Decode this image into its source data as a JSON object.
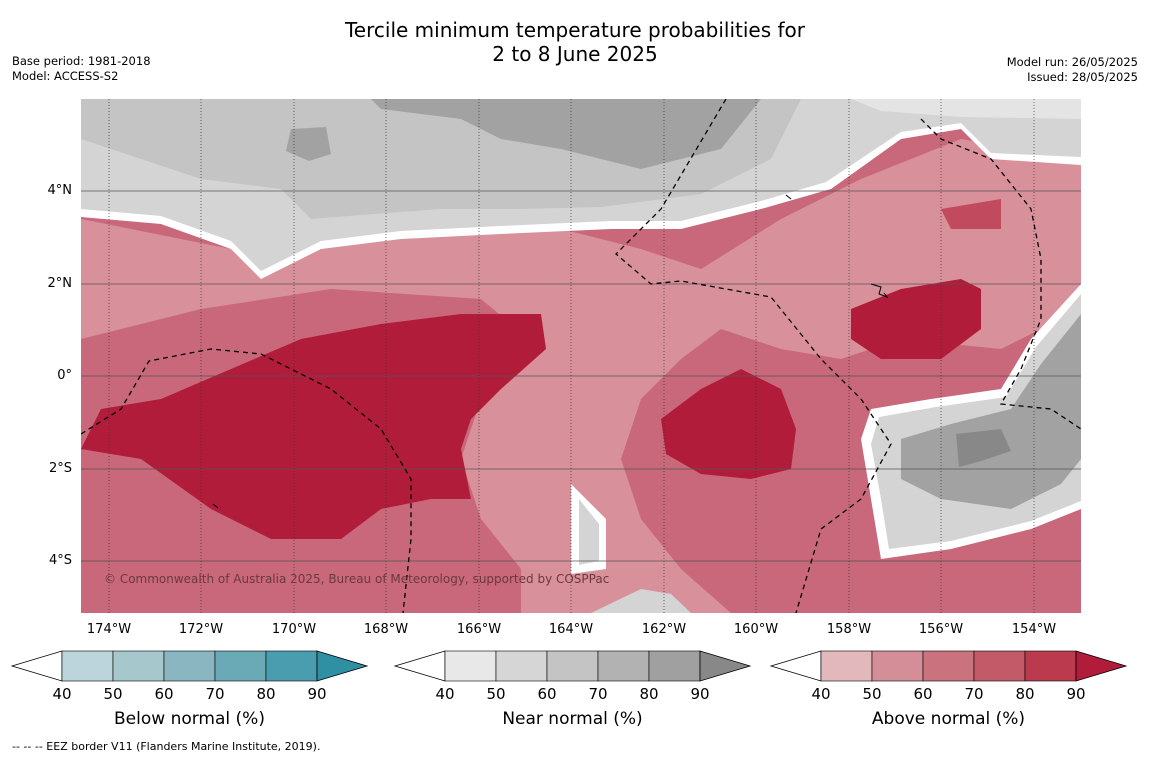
{
  "title_line1": "Tercile minimum temperature probabilities for",
  "title_line2": "2 to 8 June 2025",
  "meta_left": [
    "Base period: 1981-2018",
    "Model: ACCESS-S2"
  ],
  "meta_right": [
    "Model run: 26/05/2025",
    "Issued: 28/05/2025"
  ],
  "lat_labels": [
    "4°N",
    "2°N",
    "0°",
    "2°S",
    "4°S"
  ],
  "lon_labels": [
    "174°W",
    "172°W",
    "170°W",
    "168°W",
    "166°W",
    "164°W",
    "162°W",
    "160°W",
    "158°W",
    "156°W",
    "154°W"
  ],
  "copyright": "© Commonwealth of Australia 2025, Bureau of Meteorology, supported by COSPPac",
  "footnote": "--  --  -- EEZ border V11 (Flanders Marine Institute, 2019).",
  "colorbars": [
    {
      "label": "Below normal (%)",
      "ticks": [
        "40",
        "50",
        "60",
        "70",
        "80",
        "90"
      ],
      "colors": [
        "#bcd5dc",
        "#a6c7cc",
        "#8ab6c2",
        "#6aaab7",
        "#4a9daf",
        "#2f8fa3"
      ]
    },
    {
      "label": "Near normal (%)",
      "ticks": [
        "40",
        "50",
        "60",
        "70",
        "80",
        "90"
      ],
      "colors": [
        "#e8e8e8",
        "#d6d6d6",
        "#c4c4c4",
        "#b2b2b2",
        "#a0a0a0",
        "#888888"
      ]
    },
    {
      "label": "Above normal (%)",
      "ticks": [
        "40",
        "50",
        "60",
        "70",
        "80",
        "90"
      ],
      "colors": [
        "#e2b8bd",
        "#d48e98",
        "#ca727e",
        "#c25a68",
        "#bb3a4e",
        "#b01c3a"
      ]
    }
  ]
}
